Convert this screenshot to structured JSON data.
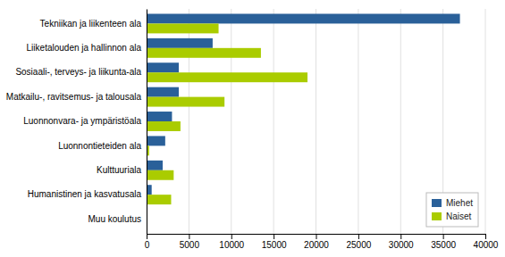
{
  "chart_data": {
    "type": "bar",
    "orientation": "horizontal",
    "categories": [
      "Tekniikan ja liikenteen ala",
      "Liiketalouden ja hallinnon ala",
      "Sosiaali-, terveys- ja liikunta-ala",
      "Matkailu-, ravitsemus- ja talousala",
      "Luonnonvara- ja ympäristöala",
      "Luonnontieteiden ala",
      "Kulttuuriala",
      "Humanistinen ja kasvatusala",
      "Muu koulutus"
    ],
    "series": [
      {
        "name": "Miehet",
        "color": "#2A6099",
        "values": [
          37000,
          7800,
          3800,
          3800,
          3000,
          2200,
          1900,
          600,
          100
        ]
      },
      {
        "name": "Naiset",
        "color": "#AACC00",
        "values": [
          8500,
          13500,
          19000,
          9200,
          4000,
          300,
          3200,
          2900,
          100
        ]
      }
    ],
    "xlim": [
      0,
      40000
    ],
    "xticks": [
      0,
      5000,
      10000,
      15000,
      20000,
      25000,
      30000,
      35000,
      40000
    ],
    "grid": true,
    "legend": "lower right"
  }
}
